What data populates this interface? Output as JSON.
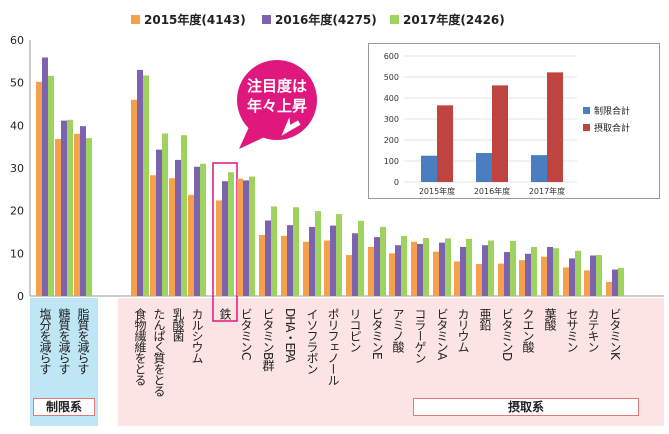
{
  "chart_data": [
    {
      "type": "bar",
      "title": "",
      "xlabel": "",
      "ylabel": "",
      "ylim": [
        0,
        60
      ],
      "yticks": [
        0,
        10,
        20,
        30,
        40,
        50,
        60
      ],
      "grid": false,
      "legend_position": "top",
      "categories": [
        "塩分を減らす",
        "糖質を減らす",
        "脂質を減らす",
        "食物繊維をとる",
        "たんぱく質をとる",
        "乳酸菌",
        "カルシウム",
        "鉄",
        "ビタミンC",
        "ビタミンB群",
        "DHA・EPA",
        "イソフラボン",
        "ポリフェノール",
        "リコピン",
        "ビタミンE",
        "アミノ酸",
        "コラーゲン",
        "ビタミンA",
        "カリウム",
        "亜鉛",
        "ビタミンD",
        "クエン酸",
        "葉酸",
        "セサミン",
        "カテキン",
        "ビタミンK"
      ],
      "series": [
        {
          "name": "2015年度(4143)",
          "color": "#f5a04a",
          "values": [
            50.2,
            36.8,
            38.0,
            46.0,
            28.3,
            27.6,
            23.7,
            22.4,
            27.5,
            14.3,
            14.1,
            12.7,
            13.0,
            9.6,
            11.5,
            10.0,
            12.7,
            10.4,
            8.1,
            7.5,
            7.6,
            8.4,
            9.2,
            6.7,
            6.0,
            3.3
          ]
        },
        {
          "name": "2016年度(4275)",
          "color": "#7d62b0",
          "values": [
            55.9,
            41.1,
            39.8,
            53.0,
            34.3,
            31.9,
            30.3,
            26.9,
            27.1,
            17.7,
            16.6,
            16.2,
            16.5,
            14.7,
            13.8,
            11.9,
            12.2,
            12.5,
            11.5,
            11.9,
            10.3,
            9.9,
            11.5,
            8.8,
            9.5,
            6.2
          ]
        },
        {
          "name": "2017年度(2426)",
          "color": "#9fd35f",
          "values": [
            51.6,
            41.3,
            37.0,
            51.7,
            38.1,
            37.7,
            31.0,
            29.0,
            28.0,
            21.0,
            20.8,
            19.9,
            19.2,
            17.6,
            16.2,
            14.1,
            13.6,
            13.5,
            13.4,
            13.0,
            12.9,
            11.5,
            11.2,
            10.6,
            9.6,
            6.6
          ]
        }
      ]
    },
    {
      "type": "bar",
      "title": "",
      "ylim": [
        0,
        600
      ],
      "yticks": [
        0,
        100,
        200,
        300,
        400,
        500,
        600
      ],
      "legend_position": "right",
      "categories": [
        "2015年度",
        "2016年度",
        "2017年度"
      ],
      "series": [
        {
          "name": "制限合計",
          "color": "#4a7ec0",
          "values": [
            125,
            138,
            128
          ]
        },
        {
          "name": "摂取合計",
          "color": "#c0433f",
          "values": [
            365,
            460,
            522
          ]
        }
      ]
    }
  ],
  "groups": {
    "restrict": "制限系",
    "intake": "摂取系"
  },
  "callout": {
    "line1": "注目度は",
    "line2": "年々上昇"
  },
  "colors": {
    "restrict_bg": "#bfe6f5",
    "intake_bg": "#fde4e4",
    "callout": "#e0177c",
    "highlight": "#e0177c"
  }
}
